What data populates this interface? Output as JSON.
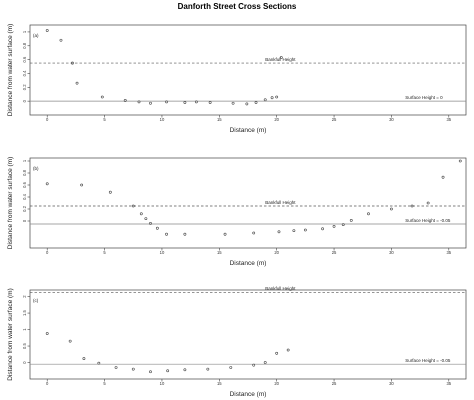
{
  "title": "Danforth Street Cross Sections",
  "chart_data": [
    {
      "type": "scatter",
      "panel_label": "(a)",
      "xlabel": "Distance (m)",
      "ylabel": "Distance from water surface (m)",
      "xlim": [
        -1.5,
        36.5
      ],
      "ylim": [
        -0.2,
        1.1
      ],
      "x_ticks": [
        0,
        5,
        10,
        15,
        20,
        25,
        30,
        35
      ],
      "y_ticks": [
        0,
        0.2,
        0.4,
        0.6,
        0.8,
        1
      ],
      "bankfull_height": 0.55,
      "bankfull_label": "Bankfull Height",
      "surface_height": 0,
      "surface_label": "Surface Height = 0",
      "series": [
        {
          "x": [
            0,
            1.2,
            2.2,
            2.6,
            4.8,
            6.8,
            8.0,
            9.0,
            10.4,
            12.0,
            13.0,
            14.2,
            16.2,
            17.4,
            18.2,
            19.0,
            19.6,
            20.0,
            20.4
          ],
          "y": [
            1.02,
            0.88,
            0.55,
            0.26,
            0.06,
            0.01,
            -0.01,
            -0.03,
            -0.01,
            -0.02,
            -0.01,
            -0.02,
            -0.03,
            -0.04,
            -0.02,
            0.02,
            0.05,
            0.06,
            0.63
          ]
        }
      ]
    },
    {
      "type": "scatter",
      "panel_label": "(b)",
      "xlabel": "Distance (m)",
      "ylabel": "Distance from water surface (m)",
      "xlim": [
        -1.5,
        36.5
      ],
      "ylim": [
        -0.45,
        1.05
      ],
      "x_ticks": [
        0,
        5,
        10,
        15,
        20,
        25,
        30,
        35
      ],
      "y_ticks": [
        0,
        0.2,
        0.4,
        0.6,
        0.8,
        1
      ],
      "bankfull_height": 0.25,
      "bankfull_label": "Bankfull Height",
      "surface_height": -0.05,
      "surface_label": "Surface Height = -0.05",
      "series": [
        {
          "x": [
            0,
            3,
            5.5,
            7.5,
            8.2,
            8.6,
            9.0,
            9.6,
            10.4,
            12.0,
            15.5,
            18.0,
            20.2,
            21.5,
            22.5,
            24.0,
            25.0,
            25.8,
            26.5,
            28.0,
            30.0,
            31.8,
            33.2,
            34.5,
            36.0
          ],
          "y": [
            0.62,
            0.6,
            0.48,
            0.25,
            0.12,
            0.04,
            -0.04,
            -0.12,
            -0.22,
            -0.22,
            -0.22,
            -0.2,
            -0.18,
            -0.16,
            -0.15,
            -0.13,
            -0.09,
            -0.06,
            0.01,
            0.12,
            0.2,
            0.25,
            0.3,
            0.73,
            1.0
          ]
        }
      ]
    },
    {
      "type": "scatter",
      "panel_label": "(c)",
      "xlabel": "Distance (m)",
      "ylabel": "Distance from water surface (m)",
      "xlim": [
        -1.5,
        36.5
      ],
      "ylim": [
        -0.5,
        2.2
      ],
      "x_ticks": [
        0,
        5,
        10,
        15,
        20,
        25,
        30,
        35
      ],
      "y_ticks": [
        0,
        0.5,
        1,
        1.5,
        2
      ],
      "bankfull_height": 2.13,
      "bankfull_label": "Bankfull Height",
      "surface_height": -0.05,
      "surface_label": "Surface Height = -0.05",
      "series": [
        {
          "x": [
            0,
            2,
            3.2,
            4.5,
            6.0,
            7.5,
            9.0,
            10.5,
            12.0,
            14.0,
            16.0,
            18.0,
            19.0,
            20.0,
            21.0
          ],
          "y": [
            0.88,
            0.65,
            0.12,
            -0.02,
            -0.15,
            -0.2,
            -0.28,
            -0.25,
            -0.22,
            -0.2,
            -0.15,
            -0.08,
            0.0,
            0.28,
            0.38
          ]
        }
      ]
    }
  ]
}
